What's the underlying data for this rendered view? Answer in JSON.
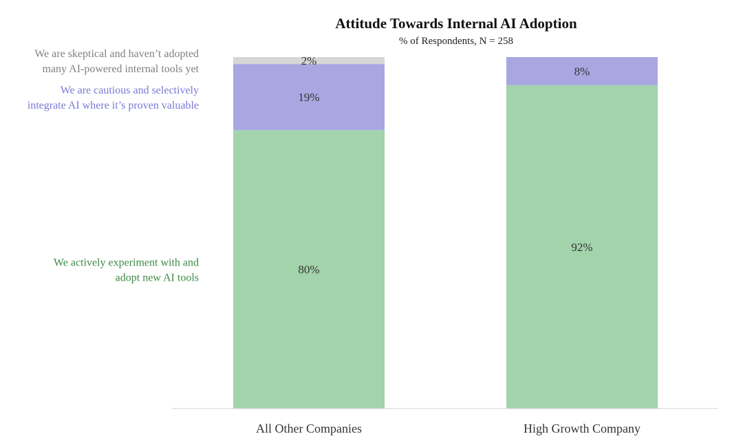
{
  "chart_data": {
    "type": "bar",
    "stacked": true,
    "title": "Attitude Towards Internal AI Adoption",
    "subtitle": "% of Respondents, N = 258",
    "categories": [
      "All Other Companies",
      "High Growth Company"
    ],
    "ylim": [
      0,
      100
    ],
    "grid": false,
    "legend_position": "left",
    "series": [
      {
        "name": "We actively experiment with and adopt new AI tools",
        "legend_lines": [
          "We actively experiment with and",
          "adopt new AI tools"
        ],
        "values": [
          80,
          92
        ],
        "labels": [
          "80%",
          "92%"
        ],
        "color": "#a3d3ab",
        "text_color": "#3d8b45"
      },
      {
        "name": "We are cautious and selectively integrate AI where it’s proven valuable",
        "legend_lines": [
          "We are cautious and selectively",
          "integrate AI where it’s proven valuable"
        ],
        "values": [
          19,
          8
        ],
        "labels": [
          "19%",
          "8%"
        ],
        "color": "#a9a7e2",
        "text_color": "#7b78d6"
      },
      {
        "name": "We are skeptical and haven’t adopted many AI-powered internal tools yet",
        "legend_lines": [
          "We are skeptical and haven’t adopted",
          "many AI-powered internal tools yet"
        ],
        "values": [
          2,
          0
        ],
        "labels": [
          "2%",
          ""
        ],
        "color": "#d6d6d6",
        "text_color": "#808080"
      }
    ]
  }
}
